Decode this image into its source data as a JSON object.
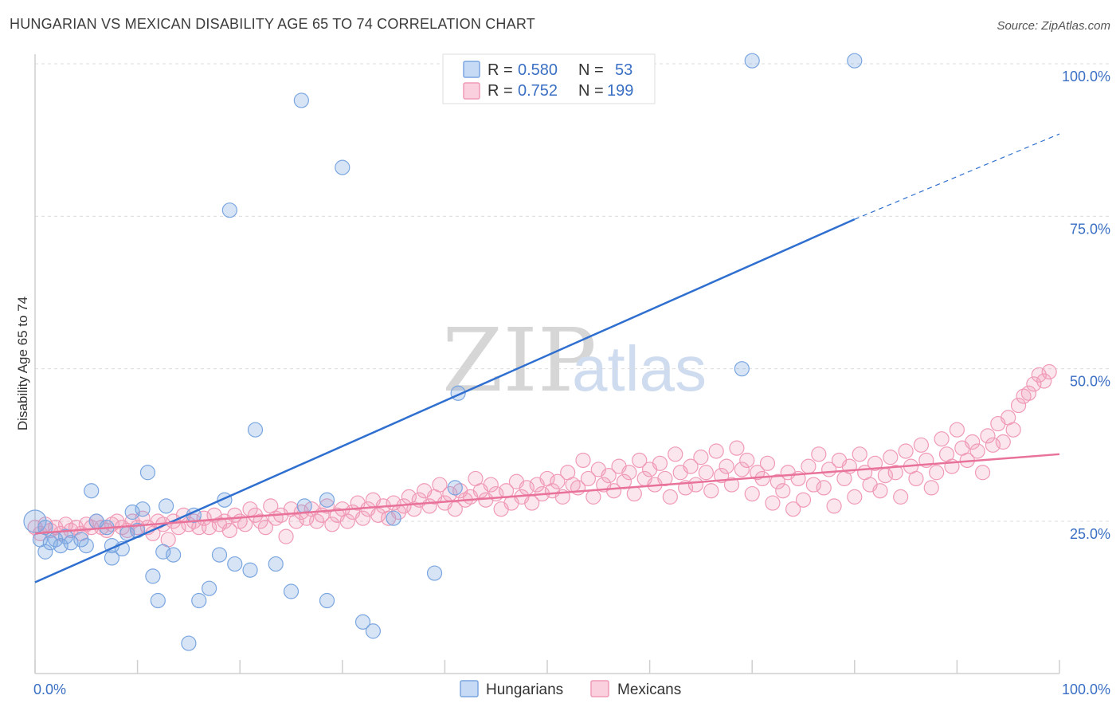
{
  "header": {
    "title": "HUNGARIAN VS MEXICAN DISABILITY AGE 65 TO 74 CORRELATION CHART",
    "source": "Source: ZipAtlas.com"
  },
  "watermark": {
    "zip": "ZIP",
    "atlas": "atlas"
  },
  "colors": {
    "hungarian": "#7aa6e0",
    "hungarian_line": "#2f6fcf",
    "mexican": "#f09ab6",
    "mexican_line": "#e8729a",
    "accent_text": "#3a6fc4"
  },
  "chart_data": {
    "type": "scatter",
    "title": "HUNGARIAN VS MEXICAN DISABILITY AGE 65 TO 74 CORRELATION CHART",
    "xlabel": "",
    "ylabel": "Disability Age 65 to 74",
    "xlim": [
      0,
      100
    ],
    "ylim": [
      0,
      102
    ],
    "x_tick_labels": {
      "left": "0.0%",
      "right": "100.0%"
    },
    "y_ticks": [
      {
        "value": 25,
        "label": "25.0%"
      },
      {
        "value": 50,
        "label": "50.0%"
      },
      {
        "value": 75,
        "label": "75.0%"
      },
      {
        "value": 100,
        "label": "100.0%"
      }
    ],
    "legend_top": [
      {
        "series": "Hungarians",
        "r_label": "R =",
        "r": "0.580",
        "n_label": "N =",
        "n": "53"
      },
      {
        "series": "Mexicans",
        "r_label": "R =",
        "r": "0.752",
        "n_label": "N =",
        "n": "199"
      }
    ],
    "legend_bottom": [
      "Hungarians",
      "Mexicans"
    ],
    "series": [
      {
        "name": "Hungarians",
        "trend": {
          "x0": 0,
          "y0": 15.0,
          "x1": 80,
          "y1": 74.5,
          "dashed_to_x": 100,
          "dashed_to_y": 88.5
        },
        "points": [
          [
            0,
            25
          ],
          [
            0.5,
            22
          ],
          [
            1,
            20
          ],
          [
            1.5,
            21.5
          ],
          [
            2,
            22
          ],
          [
            2.5,
            21
          ],
          [
            3,
            22.5
          ],
          [
            3.5,
            21.5
          ],
          [
            4.5,
            22
          ],
          [
            5,
            21
          ],
          [
            5.5,
            30
          ],
          [
            6,
            25
          ],
          [
            7,
            24
          ],
          [
            7.5,
            21
          ],
          [
            7.5,
            19
          ],
          [
            8.5,
            20.5
          ],
          [
            9,
            23
          ],
          [
            9.5,
            26.5
          ],
          [
            10,
            23.5
          ],
          [
            10.5,
            27
          ],
          [
            11,
            33
          ],
          [
            11.5,
            16
          ],
          [
            12,
            12
          ],
          [
            12.5,
            20
          ],
          [
            12.8,
            27.5
          ],
          [
            13.5,
            19.5
          ],
          [
            15,
            5
          ],
          [
            15.5,
            26
          ],
          [
            16,
            12
          ],
          [
            17,
            14
          ],
          [
            18,
            19.5
          ],
          [
            18.5,
            28.5
          ],
          [
            19,
            76
          ],
          [
            19.5,
            18
          ],
          [
            21,
            17
          ],
          [
            21.5,
            40
          ],
          [
            23.5,
            18
          ],
          [
            25,
            13.5
          ],
          [
            26,
            94
          ],
          [
            26.3,
            27.5
          ],
          [
            28.5,
            28.5
          ],
          [
            28.5,
            12
          ],
          [
            30,
            83
          ],
          [
            32,
            8.5
          ],
          [
            33,
            7
          ],
          [
            35,
            25.5
          ],
          [
            39,
            16.5
          ],
          [
            41,
            30.5
          ],
          [
            41.3,
            46
          ],
          [
            69,
            50
          ],
          [
            70,
            100.5
          ],
          [
            80,
            100.5
          ],
          [
            1,
            24
          ]
        ]
      },
      {
        "name": "Mexicans",
        "trend": {
          "x0": 0,
          "y0": 23.0,
          "x1": 100,
          "y1": 36.0
        },
        "points": [
          [
            0,
            24
          ],
          [
            0.5,
            23
          ],
          [
            1,
            24.5
          ],
          [
            1.5,
            23.5
          ],
          [
            2,
            24
          ],
          [
            2.5,
            23
          ],
          [
            3,
            24.5
          ],
          [
            3.5,
            23.5
          ],
          [
            4,
            24
          ],
          [
            4.5,
            23
          ],
          [
            5,
            24.5
          ],
          [
            5.5,
            24
          ],
          [
            6,
            25
          ],
          [
            6.5,
            24
          ],
          [
            7,
            23.5
          ],
          [
            7.5,
            24.5
          ],
          [
            8,
            25
          ],
          [
            8.5,
            24
          ],
          [
            9,
            23.5
          ],
          [
            9.5,
            25
          ],
          [
            10,
            24
          ],
          [
            10.5,
            25.5
          ],
          [
            11,
            24
          ],
          [
            11.5,
            23
          ],
          [
            12,
            25
          ],
          [
            12.5,
            24.5
          ],
          [
            13,
            22
          ],
          [
            13.5,
            25
          ],
          [
            14,
            24
          ],
          [
            14.5,
            26
          ],
          [
            15,
            24.5
          ],
          [
            15.5,
            25
          ],
          [
            16,
            24
          ],
          [
            16.5,
            25.5
          ],
          [
            17,
            24
          ],
          [
            17.5,
            26
          ],
          [
            18,
            24.5
          ],
          [
            18.5,
            25
          ],
          [
            19,
            23.5
          ],
          [
            19.5,
            26
          ],
          [
            20,
            25
          ],
          [
            20.5,
            24.5
          ],
          [
            21,
            27
          ],
          [
            21.5,
            26
          ],
          [
            22,
            25
          ],
          [
            22.5,
            24
          ],
          [
            23,
            27.5
          ],
          [
            23.5,
            25.5
          ],
          [
            24,
            26
          ],
          [
            24.5,
            22.5
          ],
          [
            25,
            27
          ],
          [
            25.5,
            25
          ],
          [
            26,
            26.5
          ],
          [
            26.5,
            25.5
          ],
          [
            27,
            27
          ],
          [
            27.5,
            25
          ],
          [
            28,
            26
          ],
          [
            28.5,
            27.5
          ],
          [
            29,
            24.5
          ],
          [
            29.5,
            26
          ],
          [
            30,
            27
          ],
          [
            30.5,
            25
          ],
          [
            31,
            26.5
          ],
          [
            31.5,
            28
          ],
          [
            32,
            25.5
          ],
          [
            32.5,
            27
          ],
          [
            33,
            28.5
          ],
          [
            33.5,
            26
          ],
          [
            34,
            27.5
          ],
          [
            34.5,
            25.5
          ],
          [
            35,
            28
          ],
          [
            35.5,
            26.5
          ],
          [
            36,
            27.5
          ],
          [
            36.5,
            29
          ],
          [
            37,
            27
          ],
          [
            37.5,
            28.5
          ],
          [
            38,
            30
          ],
          [
            38.5,
            27.5
          ],
          [
            39,
            29
          ],
          [
            39.5,
            31
          ],
          [
            40,
            28
          ],
          [
            40.5,
            29.5
          ],
          [
            41,
            27
          ],
          [
            41.5,
            30
          ],
          [
            42,
            28.5
          ],
          [
            42.5,
            29
          ],
          [
            43,
            32
          ],
          [
            43.5,
            30
          ],
          [
            44,
            28.5
          ],
          [
            44.5,
            31
          ],
          [
            45,
            29.5
          ],
          [
            45.5,
            27
          ],
          [
            46,
            30
          ],
          [
            46.5,
            28
          ],
          [
            47,
            31.5
          ],
          [
            47.5,
            29
          ],
          [
            48,
            30.5
          ],
          [
            48.5,
            28
          ],
          [
            49,
            31
          ],
          [
            49.5,
            29.5
          ],
          [
            50,
            32
          ],
          [
            50.5,
            30
          ],
          [
            51,
            31.5
          ],
          [
            51.5,
            29
          ],
          [
            52,
            33
          ],
          [
            52.5,
            31
          ],
          [
            53,
            30.5
          ],
          [
            53.5,
            35
          ],
          [
            54,
            32
          ],
          [
            54.5,
            29
          ],
          [
            55,
            33.5
          ],
          [
            55.5,
            31
          ],
          [
            56,
            32.5
          ],
          [
            56.5,
            30
          ],
          [
            57,
            34
          ],
          [
            57.5,
            31.5
          ],
          [
            58,
            33
          ],
          [
            58.5,
            29.5
          ],
          [
            59,
            35
          ],
          [
            59.5,
            32
          ],
          [
            60,
            33.5
          ],
          [
            60.5,
            31
          ],
          [
            61,
            34.5
          ],
          [
            61.5,
            32
          ],
          [
            62,
            29
          ],
          [
            62.5,
            36
          ],
          [
            63,
            33
          ],
          [
            63.5,
            30.5
          ],
          [
            64,
            34
          ],
          [
            64.5,
            31
          ],
          [
            65,
            35.5
          ],
          [
            65.5,
            33
          ],
          [
            66,
            30
          ],
          [
            66.5,
            36.5
          ],
          [
            67,
            32.5
          ],
          [
            67.5,
            34
          ],
          [
            68,
            31
          ],
          [
            68.5,
            37
          ],
          [
            69,
            33.5
          ],
          [
            69.5,
            35
          ],
          [
            70,
            29.5
          ],
          [
            70.5,
            33
          ],
          [
            71,
            32
          ],
          [
            71.5,
            34.5
          ],
          [
            72,
            28
          ],
          [
            72.5,
            31.5
          ],
          [
            73,
            30
          ],
          [
            73.5,
            33
          ],
          [
            74,
            27
          ],
          [
            74.5,
            32
          ],
          [
            75,
            28.5
          ],
          [
            75.5,
            34
          ],
          [
            76,
            31
          ],
          [
            76.5,
            36
          ],
          [
            77,
            30.5
          ],
          [
            77.5,
            33.5
          ],
          [
            78,
            27.5
          ],
          [
            78.5,
            35
          ],
          [
            79,
            32
          ],
          [
            79.5,
            34
          ],
          [
            80,
            29
          ],
          [
            80.5,
            36
          ],
          [
            81,
            33
          ],
          [
            81.5,
            31
          ],
          [
            82,
            34.5
          ],
          [
            82.5,
            30
          ],
          [
            83,
            32.5
          ],
          [
            83.5,
            35.5
          ],
          [
            84,
            33
          ],
          [
            84.5,
            29
          ],
          [
            85,
            36.5
          ],
          [
            85.5,
            34
          ],
          [
            86,
            32
          ],
          [
            86.5,
            37.5
          ],
          [
            87,
            35
          ],
          [
            87.5,
            30.5
          ],
          [
            88,
            33
          ],
          [
            88.5,
            38.5
          ],
          [
            89,
            36
          ],
          [
            89.5,
            34
          ],
          [
            90,
            40
          ],
          [
            90.5,
            37
          ],
          [
            91,
            35
          ],
          [
            91.5,
            38
          ],
          [
            92,
            36.5
          ],
          [
            92.5,
            33
          ],
          [
            93,
            39
          ],
          [
            93.5,
            37.5
          ],
          [
            94,
            41
          ],
          [
            94.5,
            38
          ],
          [
            95,
            42
          ],
          [
            95.5,
            40
          ],
          [
            96,
            44
          ],
          [
            96.5,
            45.5
          ],
          [
            97,
            46
          ],
          [
            97.5,
            47.5
          ],
          [
            98,
            49
          ],
          [
            98.5,
            48
          ],
          [
            99,
            49.5
          ]
        ]
      }
    ]
  }
}
